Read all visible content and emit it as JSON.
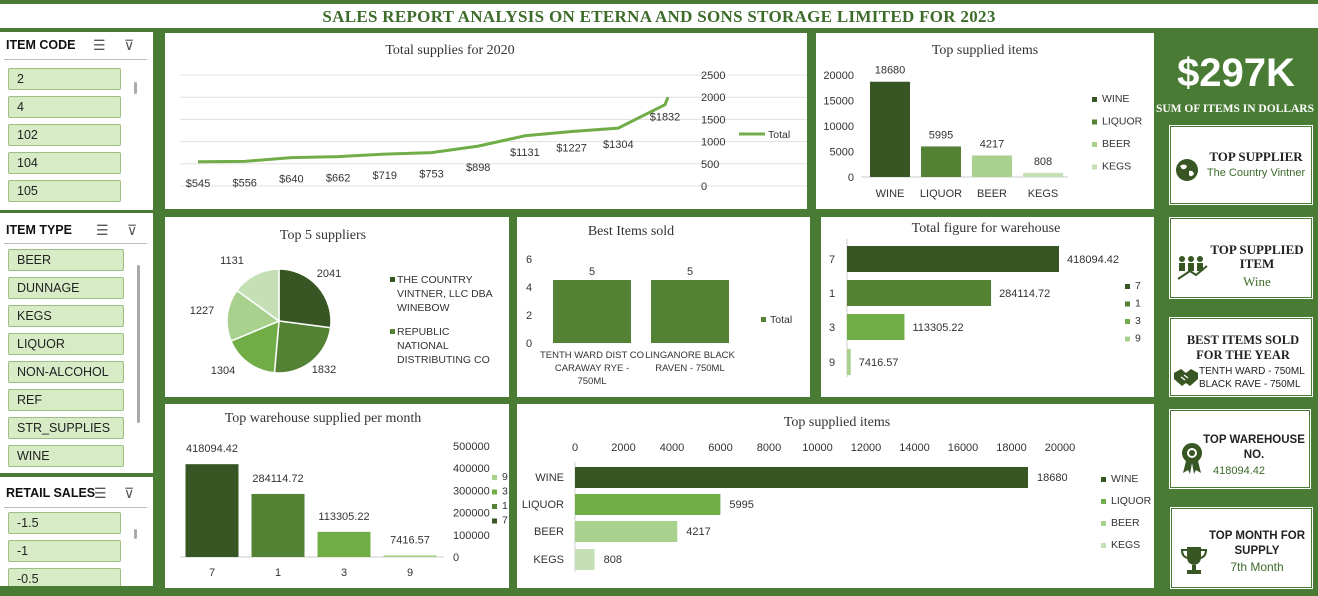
{
  "header": {
    "title": "SALES REPORT ANALYSIS ON ETERNA AND SONS STORAGE LIMITED FOR 2023"
  },
  "colors": {
    "bg": "#4a7b35",
    "c1": "#375623",
    "c2": "#548235",
    "c3": "#70ad47",
    "c4": "#a9d18e",
    "c5": "#c5e0b4"
  },
  "slicers": [
    {
      "title": "ITEM CODE",
      "items": [
        "2",
        "4",
        "102",
        "104",
        "105"
      ]
    },
    {
      "title": "ITEM TYPE",
      "items": [
        "BEER",
        "DUNNAGE",
        "KEGS",
        "LIQUOR",
        "NON-ALCOHOL",
        "REF",
        "STR_SUPPLIES",
        "WINE"
      ]
    },
    {
      "title": "RETAIL SALES",
      "items": [
        "-1.5",
        "-1",
        "-0.5"
      ]
    }
  ],
  "kpis": {
    "big_value": "$297K",
    "big_label": "SUM OF ITEMS IN DOLLARS",
    "supplier_title": "TOP SUPPLIER",
    "supplier_value": "The Country Vintner",
    "item_title": "TOP SUPPLIED ITEM",
    "item_value": "Wine",
    "best_title": "BEST ITEMS SOLD FOR THE YEAR",
    "best_value1": "TENTH WARD - 750ML",
    "best_value2": "BLACK RAVE - 750ML",
    "warehouse_title": "TOP WAREHOUSE NO.",
    "warehouse_value": "418094.42",
    "month_title": "TOP MONTH FOR SUPPLY",
    "month_value": "7th Month"
  },
  "chart_data": [
    {
      "id": "supplies",
      "type": "line",
      "title": "Total supplies for 2020",
      "x": [
        "",
        "",
        "",
        "",
        "",
        "",
        "",
        "",
        "",
        "",
        "",
        ""
      ],
      "values": [
        545,
        556,
        640,
        662,
        719,
        753,
        898,
        1131,
        1227,
        1304,
        1832,
        2000
      ],
      "labels": [
        "$545",
        "$556",
        "$640",
        "$662",
        "$719",
        "$753",
        "$898",
        "$1131",
        "$1227",
        "$1304",
        "$1832",
        ""
      ],
      "ylim": [
        0,
        2500
      ],
      "yticks": [
        "0",
        "500",
        "1000",
        "1500",
        "2000",
        "2500"
      ],
      "legend": [
        "Total"
      ]
    },
    {
      "id": "topitems_col",
      "type": "bar",
      "title": "Top supplied items",
      "categories": [
        "WINE",
        "LIQUOR",
        "BEER",
        "KEGS"
      ],
      "values": [
        18680,
        5995,
        4217,
        808
      ],
      "ylim": [
        0,
        20000
      ],
      "yticks": [
        "0",
        "5000",
        "10000",
        "15000",
        "20000"
      ],
      "legend": [
        "WINE",
        "LIQUOR",
        "BEER",
        "KEGS"
      ]
    },
    {
      "id": "suppliers",
      "type": "pie",
      "title": "Top 5 suppliers",
      "values": [
        2041,
        1832,
        1304,
        1227,
        1131
      ],
      "legend": [
        "THE COUNTRY VINTNER, LLC DBA WINEBOW",
        "REPUBLIC NATIONAL DISTRIBUTING CO"
      ]
    },
    {
      "id": "bestsold",
      "type": "bar",
      "title": "Best Items sold",
      "categories": [
        "TENTH WARD DIST CO CARAWAY RYE - 750ML",
        "LINGANORE BLACK RAVEN - 750ML"
      ],
      "values": [
        5,
        5
      ],
      "ylim": [
        0,
        6
      ],
      "yticks": [
        "0",
        "2",
        "4",
        "6"
      ],
      "legend": [
        "Total"
      ]
    },
    {
      "id": "warehouse",
      "type": "bar",
      "title": "Total figure for warehouse",
      "categories": [
        "7",
        "1",
        "3",
        "9"
      ],
      "values": [
        418094.42,
        284114.72,
        113305.22,
        7416.57
      ],
      "legend": [
        "7",
        "1",
        "3",
        "9"
      ]
    },
    {
      "id": "warehouse_month",
      "type": "bar",
      "title": "Top warehouse supplied per month",
      "categories": [
        "7",
        "1",
        "3",
        "9"
      ],
      "values": [
        418094.42,
        284114.72,
        113305.22,
        7416.57
      ],
      "ylim": [
        0,
        500000
      ],
      "yticks": [
        "0",
        "100000",
        "200000",
        "300000",
        "400000",
        "500000"
      ],
      "legend": [
        "9",
        "3",
        "1",
        "7"
      ]
    },
    {
      "id": "topitems_bar",
      "type": "bar",
      "title": "Top supplied items",
      "categories": [
        "WINE",
        "LIQUOR",
        "BEER",
        "KEGS"
      ],
      "values": [
        18680,
        5995,
        4217,
        808
      ],
      "xlim": [
        0,
        20000
      ],
      "xticks": [
        "0",
        "2000",
        "4000",
        "6000",
        "8000",
        "10000",
        "12000",
        "14000",
        "16000",
        "18000",
        "20000"
      ],
      "legend": [
        "WINE",
        "LIQUOR",
        "BEER",
        "KEGS"
      ]
    }
  ]
}
